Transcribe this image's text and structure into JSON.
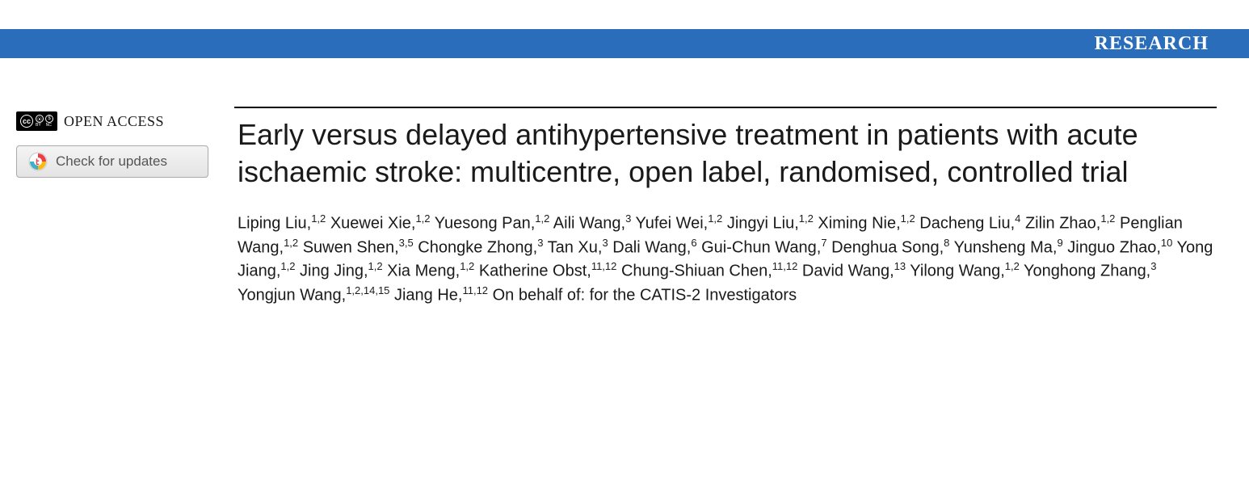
{
  "header": {
    "section_label": "RESEARCH",
    "bar_color": "#2a6ebb",
    "text_color": "#ffffff"
  },
  "sidebar": {
    "open_access_label": "OPEN ACCESS",
    "check_updates_label": "Check for updates"
  },
  "article": {
    "title": "Early versus delayed antihypertensive treatment in patients with acute ischaemic stroke: multicentre, open label, randomised, controlled trial",
    "authors": [
      {
        "name": "Liping Liu",
        "affiliations": "1,2"
      },
      {
        "name": "Xuewei Xie",
        "affiliations": "1,2"
      },
      {
        "name": "Yuesong Pan",
        "affiliations": "1,2"
      },
      {
        "name": "Aili Wang",
        "affiliations": "3"
      },
      {
        "name": "Yufei Wei",
        "affiliations": "1,2"
      },
      {
        "name": "Jingyi Liu",
        "affiliations": "1,2"
      },
      {
        "name": "Ximing Nie",
        "affiliations": "1,2"
      },
      {
        "name": "Dacheng Liu",
        "affiliations": "4"
      },
      {
        "name": "Zilin Zhao",
        "affiliations": "1,2"
      },
      {
        "name": "Penglian Wang",
        "affiliations": "1,2"
      },
      {
        "name": "Suwen Shen",
        "affiliations": "3,5"
      },
      {
        "name": "Chongke Zhong",
        "affiliations": "3"
      },
      {
        "name": "Tan Xu",
        "affiliations": "3"
      },
      {
        "name": "Dali Wang",
        "affiliations": "6"
      },
      {
        "name": "Gui-Chun Wang",
        "affiliations": "7"
      },
      {
        "name": "Denghua Song",
        "affiliations": "8"
      },
      {
        "name": "Yunsheng Ma",
        "affiliations": "9"
      },
      {
        "name": "Jinguo Zhao",
        "affiliations": "10"
      },
      {
        "name": "Yong Jiang",
        "affiliations": "1,2"
      },
      {
        "name": "Jing Jing",
        "affiliations": "1,2"
      },
      {
        "name": "Xia Meng",
        "affiliations": "1,2"
      },
      {
        "name": "Katherine Obst",
        "affiliations": "11,12"
      },
      {
        "name": "Chung-Shiuan Chen",
        "affiliations": "11,12"
      },
      {
        "name": "David Wang",
        "affiliations": "13"
      },
      {
        "name": "Yilong Wang",
        "affiliations": "1,2"
      },
      {
        "name": "Yonghong Zhang",
        "affiliations": "3"
      },
      {
        "name": "Yongjun Wang",
        "affiliations": "1,2,14,15"
      },
      {
        "name": "Jiang He",
        "affiliations": "11,12"
      }
    ],
    "behalf_text": "On behalf of: for the CATIS-2 Investigators"
  }
}
